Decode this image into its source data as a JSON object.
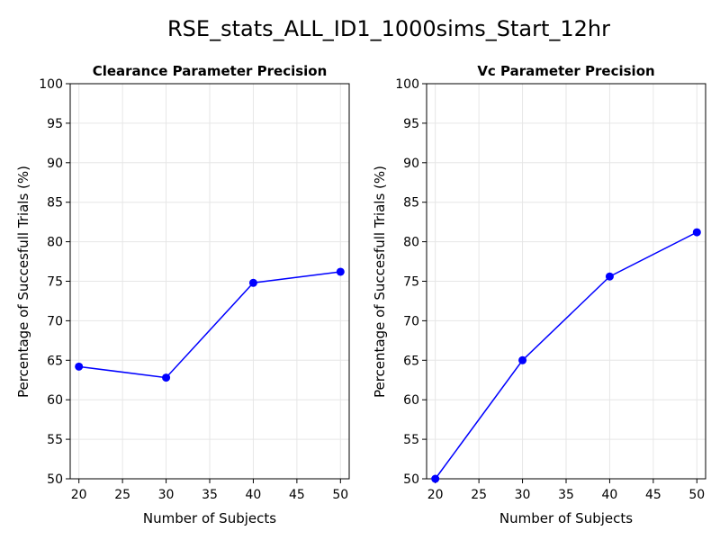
{
  "figure": {
    "title": "RSE_stats_ALL_ID1_1000sims_Start_12hr",
    "line_color": "#0000ff",
    "background": "#ffffff"
  },
  "chart_data": [
    {
      "type": "line",
      "title": "Clearance Parameter Precision",
      "xlabel": "Number of Subjects",
      "ylabel": "Percentage of Succesfull Trials (%)",
      "x": [
        20,
        30,
        40,
        50
      ],
      "series": [
        {
          "values": [
            64.2,
            62.8,
            74.8,
            76.2
          ],
          "color": "#0000ff",
          "markers": true
        }
      ],
      "xlim": [
        19,
        51
      ],
      "ylim": [
        50,
        100
      ],
      "xticks": [
        20,
        25,
        30,
        35,
        40,
        45,
        50
      ],
      "yticks": [
        50,
        55,
        60,
        65,
        70,
        75,
        80,
        85,
        90,
        95,
        100
      ],
      "grid": true,
      "legend": "none"
    },
    {
      "type": "line",
      "title": "Vc Parameter Precision",
      "xlabel": "Number of Subjects",
      "ylabel": "Percentage of Succesfull Trials (%)",
      "x": [
        20,
        30,
        40,
        50
      ],
      "series": [
        {
          "values": [
            50.0,
            65.0,
            75.6,
            81.2
          ],
          "color": "#0000ff",
          "markers": true
        }
      ],
      "xlim": [
        19,
        51
      ],
      "ylim": [
        50,
        100
      ],
      "xticks": [
        20,
        25,
        30,
        35,
        40,
        45,
        50
      ],
      "yticks": [
        50,
        55,
        60,
        65,
        70,
        75,
        80,
        85,
        90,
        95,
        100
      ],
      "grid": true,
      "legend": "none"
    }
  ]
}
